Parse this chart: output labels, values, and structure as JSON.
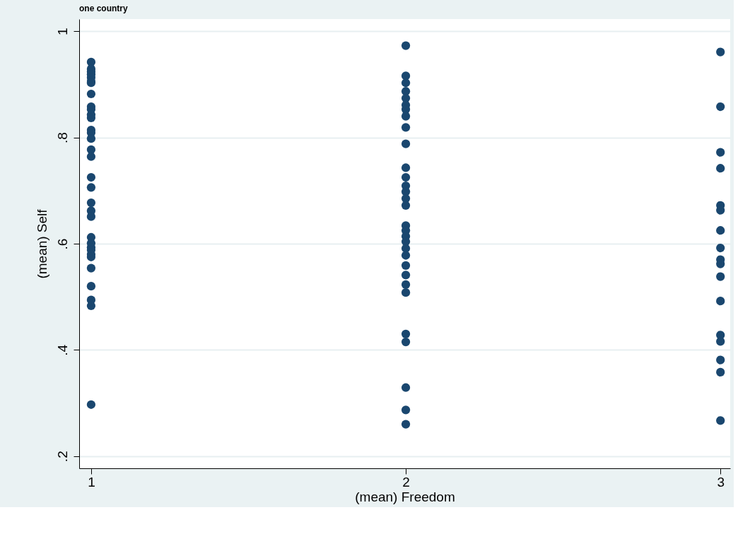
{
  "chart_data": {
    "type": "scatter",
    "title": "one country",
    "xlabel": "(mean) Freedom",
    "ylabel": "(mean) Self",
    "xlim": [
      0.962,
      3.031
    ],
    "ylim": [
      0.177,
      1.023
    ],
    "xticks": [
      1,
      2,
      3
    ],
    "yticks": [
      {
        "value": 0.2,
        "label": ".2"
      },
      {
        "value": 0.4,
        "label": ".4"
      },
      {
        "value": 0.6,
        "label": ".6"
      },
      {
        "value": 0.8,
        "label": ".8"
      },
      {
        "value": 1,
        "label": "1"
      }
    ],
    "grid": "y",
    "marker": "circle",
    "series": [
      {
        "color": "#1a476f",
        "x": [
          1,
          1,
          1,
          1,
          1,
          1,
          1,
          1,
          1,
          1,
          1,
          1,
          1,
          1,
          1,
          1,
          1,
          1,
          1,
          1,
          1,
          1,
          1,
          1,
          1,
          1,
          1,
          1,
          1,
          1,
          1,
          1,
          1,
          2,
          2,
          2,
          2,
          2,
          2,
          2,
          2,
          2,
          2,
          2,
          2,
          2,
          2,
          2,
          2,
          2,
          2,
          2,
          2,
          2,
          2,
          2,
          2,
          2,
          2,
          2,
          2,
          2,
          2,
          2,
          3,
          3,
          3,
          3,
          3,
          3,
          3,
          3,
          3,
          3,
          3,
          3,
          3,
          3,
          3,
          3,
          3
        ],
        "values": [
          0.942,
          0.929,
          0.924,
          0.919,
          0.913,
          0.906,
          0.903,
          0.882,
          0.858,
          0.853,
          0.843,
          0.837,
          0.814,
          0.809,
          0.798,
          0.777,
          0.764,
          0.725,
          0.706,
          0.677,
          0.662,
          0.651,
          0.612,
          0.601,
          0.593,
          0.588,
          0.58,
          0.575,
          0.554,
          0.52,
          0.494,
          0.483,
          0.297,
          0.973,
          0.916,
          0.903,
          0.887,
          0.874,
          0.861,
          0.853,
          0.84,
          0.819,
          0.788,
          0.743,
          0.725,
          0.709,
          0.698,
          0.685,
          0.672,
          0.634,
          0.625,
          0.614,
          0.604,
          0.591,
          0.578,
          0.559,
          0.541,
          0.523,
          0.508,
          0.43,
          0.415,
          0.329,
          0.287,
          0.26,
          0.961,
          0.858,
          0.772,
          0.742,
          0.672,
          0.663,
          0.625,
          0.592,
          0.57,
          0.562,
          0.538,
          0.492,
          0.428,
          0.416,
          0.381,
          0.358,
          0.267
        ]
      }
    ]
  }
}
